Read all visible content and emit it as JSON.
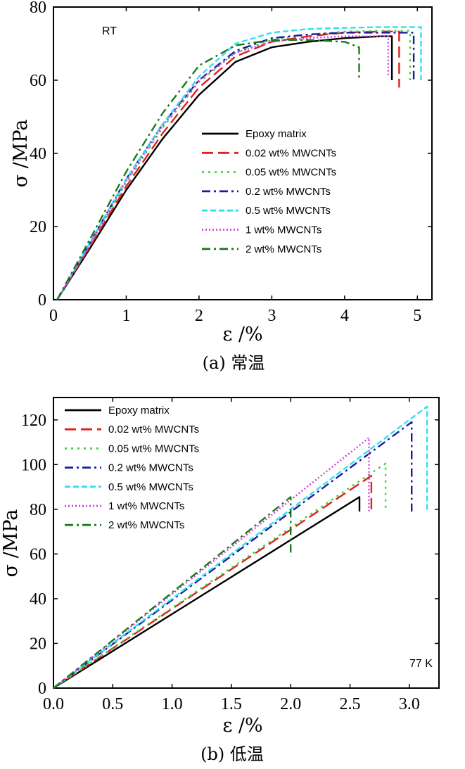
{
  "chart_data": [
    {
      "type": "line",
      "panel_caption": "(a) 常温",
      "annotation": "RT",
      "xlabel": "ε /%",
      "ylabel": "σ /MPa",
      "xlim": [
        0,
        5.2
      ],
      "ylim": [
        0,
        80
      ],
      "xticks": [
        "0",
        "1",
        "2",
        "3",
        "4",
        "5"
      ],
      "xtick_values": [
        0,
        1,
        2,
        3,
        4,
        5
      ],
      "yticks": [
        "0",
        "20",
        "40",
        "60",
        "80"
      ],
      "ytick_values": [
        0,
        20,
        40,
        60,
        80
      ],
      "legend_position": "center-right",
      "series": [
        {
          "name": "Epoxy matrix",
          "color": "#000000",
          "dash": "solid",
          "points": [
            [
              0.05,
              0
            ],
            [
              0.5,
              14
            ],
            [
              1,
              30
            ],
            [
              1.5,
              44
            ],
            [
              2,
              56
            ],
            [
              2.5,
              65
            ],
            [
              3,
              69
            ],
            [
              3.5,
              70.5
            ],
            [
              4,
              71.5
            ],
            [
              4.5,
              72
            ],
            [
              4.65,
              72
            ],
            [
              4.65,
              60
            ]
          ]
        },
        {
          "name": "0.02 wt% MWCNTs",
          "color": "#e02020",
          "dash": "long-dash",
          "points": [
            [
              0.05,
              0
            ],
            [
              0.5,
              14.5
            ],
            [
              1,
              31
            ],
            [
              1.5,
              45.5
            ],
            [
              2,
              58
            ],
            [
              2.5,
              66.5
            ],
            [
              3,
              70.5
            ],
            [
              3.5,
              72
            ],
            [
              4,
              73
            ],
            [
              4.5,
              73.3
            ],
            [
              4.75,
              73.3
            ],
            [
              4.75,
              58
            ]
          ]
        },
        {
          "name": "0.05 wt% MWCNTs",
          "color": "#40d040",
          "dash": "dot",
          "points": [
            [
              0.05,
              0
            ],
            [
              0.5,
              15
            ],
            [
              1,
              32
            ],
            [
              1.5,
              47
            ],
            [
              2,
              59.5
            ],
            [
              2.5,
              67.5
            ],
            [
              3,
              71
            ],
            [
              3.5,
              72.5
            ],
            [
              4,
              73.3
            ],
            [
              4.5,
              73.5
            ],
            [
              4.9,
              73.5
            ],
            [
              4.9,
              60
            ]
          ]
        },
        {
          "name": "0.2 wt% MWCNTs",
          "color": "#1a1aa0",
          "dash": "dash-dot",
          "points": [
            [
              0.05,
              0
            ],
            [
              0.5,
              15.5
            ],
            [
              1,
              33
            ],
            [
              1.5,
              48
            ],
            [
              2,
              60
            ],
            [
              2.5,
              68
            ],
            [
              3,
              71.5
            ],
            [
              3.5,
              72.5
            ],
            [
              4,
              73
            ],
            [
              4.5,
              73
            ],
            [
              4.95,
              73
            ],
            [
              4.95,
              60
            ]
          ]
        },
        {
          "name": "0.5 wt% MWCNTs",
          "color": "#30e0f0",
          "dash": "short-dash",
          "points": [
            [
              0.05,
              0
            ],
            [
              0.5,
              15.5
            ],
            [
              1,
              33
            ],
            [
              1.5,
              48
            ],
            [
              2,
              61
            ],
            [
              2.5,
              70
            ],
            [
              3,
              73
            ],
            [
              3.5,
              74
            ],
            [
              4,
              74.3
            ],
            [
              4.5,
              74.5
            ],
            [
              5.05,
              74.5
            ],
            [
              5.05,
              60
            ]
          ]
        },
        {
          "name": "1 wt% MWCNTs",
          "color": "#d040e0",
          "dash": "fine-dot",
          "points": [
            [
              0.05,
              0
            ],
            [
              0.5,
              15
            ],
            [
              1,
              32.5
            ],
            [
              1.5,
              47.5
            ],
            [
              2,
              60
            ],
            [
              2.5,
              67.5
            ],
            [
              3,
              70.5
            ],
            [
              3.5,
              71.5
            ],
            [
              4,
              72
            ],
            [
              4.45,
              72
            ],
            [
              4.6,
              72
            ],
            [
              4.6,
              61
            ]
          ]
        },
        {
          "name": "2 wt% MWCNTs",
          "color": "#1a7a1a",
          "dash": "dash-dot",
          "points": [
            [
              0.05,
              0
            ],
            [
              0.5,
              16.5
            ],
            [
              1,
              35
            ],
            [
              1.5,
              51
            ],
            [
              2,
              64
            ],
            [
              2.5,
              69.5
            ],
            [
              3,
              71
            ],
            [
              3.5,
              71
            ],
            [
              4,
              70.5
            ],
            [
              4.2,
              69
            ],
            [
              4.2,
              60
            ]
          ]
        }
      ]
    },
    {
      "type": "line",
      "panel_caption": "(b) 低温",
      "annotation": "77 K",
      "xlabel": "ε /%",
      "ylabel": "σ /MPa",
      "xlim": [
        0,
        3.25
      ],
      "ylim": [
        0,
        130
      ],
      "xticks": [
        "0.0",
        "0.5",
        "1.0",
        "1.5",
        "2.0",
        "2.5",
        "3.0"
      ],
      "xtick_values": [
        0,
        0.5,
        1,
        1.5,
        2,
        2.5,
        3
      ],
      "yticks": [
        "0",
        "20",
        "40",
        "60",
        "80",
        "100",
        "120"
      ],
      "ytick_values": [
        0,
        20,
        40,
        60,
        80,
        100,
        120
      ],
      "legend_position": "top-left",
      "series": [
        {
          "name": "Epoxy matrix",
          "color": "#000000",
          "dash": "solid",
          "points": [
            [
              0,
              0
            ],
            [
              2.58,
              85.5
            ],
            [
              2.58,
              79
            ]
          ]
        },
        {
          "name": "0.02 wt% MWCNTs",
          "color": "#e02020",
          "dash": "long-dash",
          "points": [
            [
              0,
              0
            ],
            [
              2.68,
              95
            ],
            [
              2.68,
              79
            ]
          ]
        },
        {
          "name": "0.05 wt% MWCNTs",
          "color": "#40d040",
          "dash": "dot",
          "points": [
            [
              0,
              0
            ],
            [
              2.8,
              100.5
            ],
            [
              2.8,
              79
            ]
          ]
        },
        {
          "name": "0.2 wt% MWCNTs",
          "color": "#1a1aa0",
          "dash": "dash-dot",
          "points": [
            [
              0,
              0
            ],
            [
              3.02,
              119
            ],
            [
              3.02,
              79
            ]
          ]
        },
        {
          "name": "0.5 wt% MWCNTs",
          "color": "#30e0f0",
          "dash": "short-dash",
          "points": [
            [
              0,
              0
            ],
            [
              3.15,
              126
            ],
            [
              3.15,
              79
            ]
          ]
        },
        {
          "name": "1 wt% MWCNTs",
          "color": "#d040e0",
          "dash": "fine-dot",
          "points": [
            [
              0,
              0
            ],
            [
              2.66,
              112
            ],
            [
              2.66,
              79
            ]
          ]
        },
        {
          "name": "2 wt% MWCNTs",
          "color": "#1a7a1a",
          "dash": "dash-dot",
          "points": [
            [
              0,
              0
            ],
            [
              2.0,
              85.5
            ],
            [
              2.0,
              59
            ]
          ]
        }
      ]
    }
  ]
}
